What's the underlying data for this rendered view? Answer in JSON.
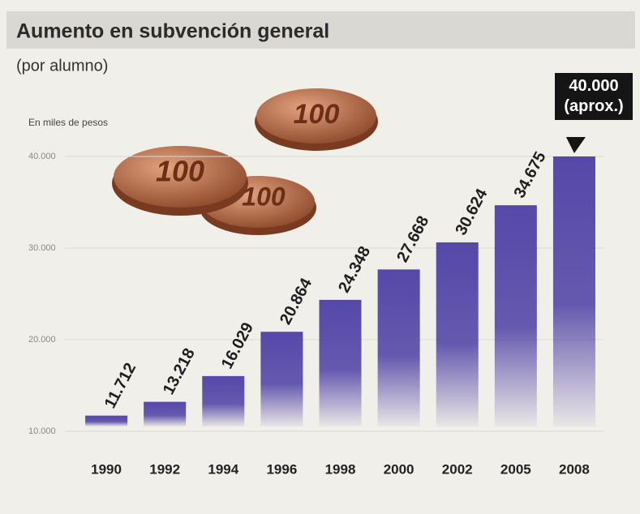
{
  "chart_data": {
    "type": "bar",
    "title": "Aumento en subvención general",
    "subtitle": "(por alumno)",
    "ylabel": "En miles de pesos",
    "coin_label": "100",
    "categories": [
      "1990",
      "1992",
      "1994",
      "1996",
      "1998",
      "2000",
      "2002",
      "2005",
      "2008"
    ],
    "values": [
      11712,
      13218,
      16029,
      20864,
      24348,
      27668,
      30624,
      34675,
      40000
    ],
    "value_labels": [
      "11.712",
      "13.218",
      "16.029",
      "20.864",
      "24.348",
      "27.668",
      "30.624",
      "34.675",
      "40.000 (aprox.)"
    ],
    "color": "#5548a8",
    "ylim": [
      10000,
      40000
    ],
    "yticks": [
      {
        "value": 10000,
        "label": "10.000"
      },
      {
        "value": 20000,
        "label": "20.000"
      },
      {
        "value": 30000,
        "label": "30.000"
      },
      {
        "value": 40000,
        "label": "40.000"
      }
    ],
    "grid": true
  }
}
